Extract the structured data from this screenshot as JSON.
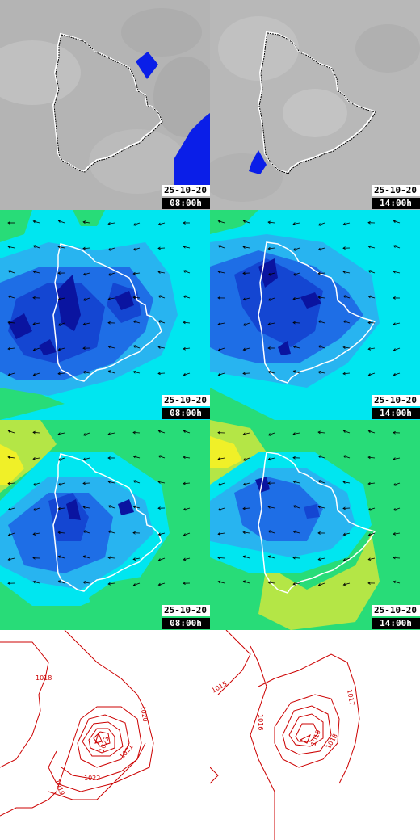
{
  "panels": [
    {
      "id": "p1",
      "date": "25-10-20",
      "time": "08:00h"
    },
    {
      "id": "p2",
      "date": "25-10-20",
      "time": "14:00h"
    },
    {
      "id": "p3",
      "date": "25-10-20",
      "time": "08:00h"
    },
    {
      "id": "p4",
      "date": "25-10-20",
      "time": "14:00h"
    },
    {
      "id": "p5",
      "date": "25-10-20",
      "time": "08:00h"
    },
    {
      "id": "p6",
      "date": "25-10-20",
      "time": "14:00h"
    }
  ],
  "pressure_left": {
    "labels": [
      "1018",
      "1020",
      "1021",
      "1022",
      "1023",
      "1019"
    ]
  },
  "pressure_right": {
    "labels": [
      "1015",
      "1016",
      "1017",
      "1018",
      "1019"
    ]
  },
  "colors": {
    "rain": "#0a1ee8",
    "grey": "#b4b4b4",
    "cyan": "#00e6f0",
    "light_blue": "#28b4f0",
    "blue": "#1e6ee6",
    "mid_blue": "#1446d2",
    "dark_blue": "#0a14a0",
    "green": "#28dc78",
    "yellow_green": "#b4e646",
    "yellow": "#f0f028",
    "isobar": "#cc0000"
  }
}
